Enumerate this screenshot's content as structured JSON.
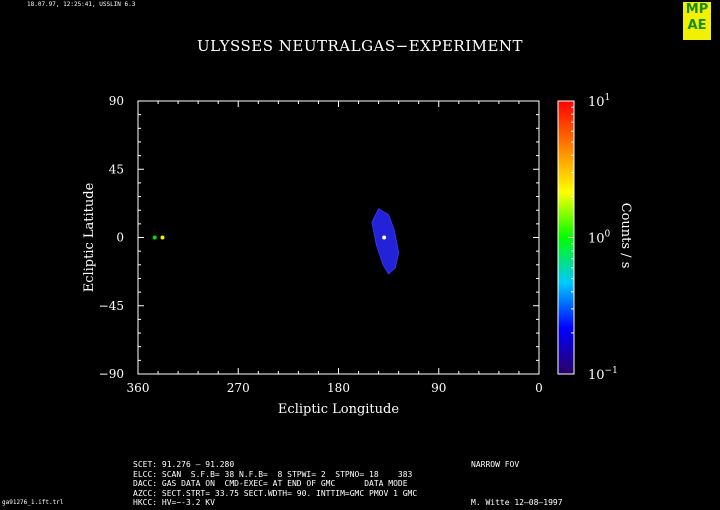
{
  "header_stamp": "18.07.97, 12:25:41, USSLIN 6.3",
  "logo": {
    "lines": [
      "MP",
      "AE"
    ]
  },
  "file_name": "ga91276_1.ift.trl",
  "footer": {
    "lines": [
      {
        "left": "SCET: 91.276 – 91.280",
        "right": "NARROW FOV"
      },
      {
        "left": "ELCC: SCAN  S.F.B= 38 N.F.B=  8 STPWI= 2  STPNO= 18    383",
        "right": ""
      },
      {
        "left": "DACC: GAS DATA ON  CMD-EXEC= AT END OF GMC      DATA MODE",
        "right": ""
      },
      {
        "left": "AZCC: SECT.STRT= 33.75 SECT.WDTH= 90. INTTIM=GMC PMOV 1 GMC",
        "right": ""
      },
      {
        "left": "HKCC: HV=−-3.2 KV",
        "right": "M. Witte 12–08–1997"
      }
    ]
  },
  "chart_data": {
    "type": "heatmap",
    "title": "ULYSSES NEUTRALGAS−EXPERIMENT",
    "xlabel": "Ecliptic Longitude",
    "ylabel": "Ecliptic Latitude",
    "xlim": [
      360,
      0
    ],
    "ylim": [
      -90,
      90
    ],
    "x_ticks": [
      360,
      270,
      180,
      90,
      0
    ],
    "y_ticks": [
      90,
      45,
      0,
      -45,
      -90
    ],
    "y_tick_labels": [
      "90",
      "45",
      "0",
      "−45",
      "−90"
    ],
    "colorbar": {
      "label": "Counts / s",
      "scale": "log",
      "range": [
        0.1,
        10
      ],
      "tick_labels": [
        {
          "base": "10",
          "exp": "1",
          "value": 10
        },
        {
          "base": "10",
          "exp": "0",
          "value": 1
        },
        {
          "base": "10",
          "exp": "−1",
          "value": 0.1
        }
      ],
      "colors": [
        "#2a0064",
        "#0000ff",
        "#00c8ff",
        "#00ff00",
        "#ffff00",
        "#ff8000",
        "#ff0000"
      ]
    },
    "grid": false,
    "regions": [
      {
        "name": "scan-area",
        "color": "#2222d8",
        "outline": [
          [
            144,
            19
          ],
          [
            135,
            15
          ],
          [
            130,
            5
          ],
          [
            126,
            -10
          ],
          [
            129,
            -20
          ],
          [
            135,
            -24
          ],
          [
            140,
            -18
          ],
          [
            146,
            -5
          ],
          [
            150,
            10
          ]
        ]
      }
    ],
    "points": [
      {
        "lon": 338,
        "lat": 0,
        "color": "#f0f000",
        "counts": 6
      },
      {
        "lon": 345,
        "lat": 0,
        "color": "#00e000",
        "counts": 1.5
      },
      {
        "lon": 139,
        "lat": 0,
        "color": "#ffffff",
        "counts": 0
      }
    ]
  }
}
